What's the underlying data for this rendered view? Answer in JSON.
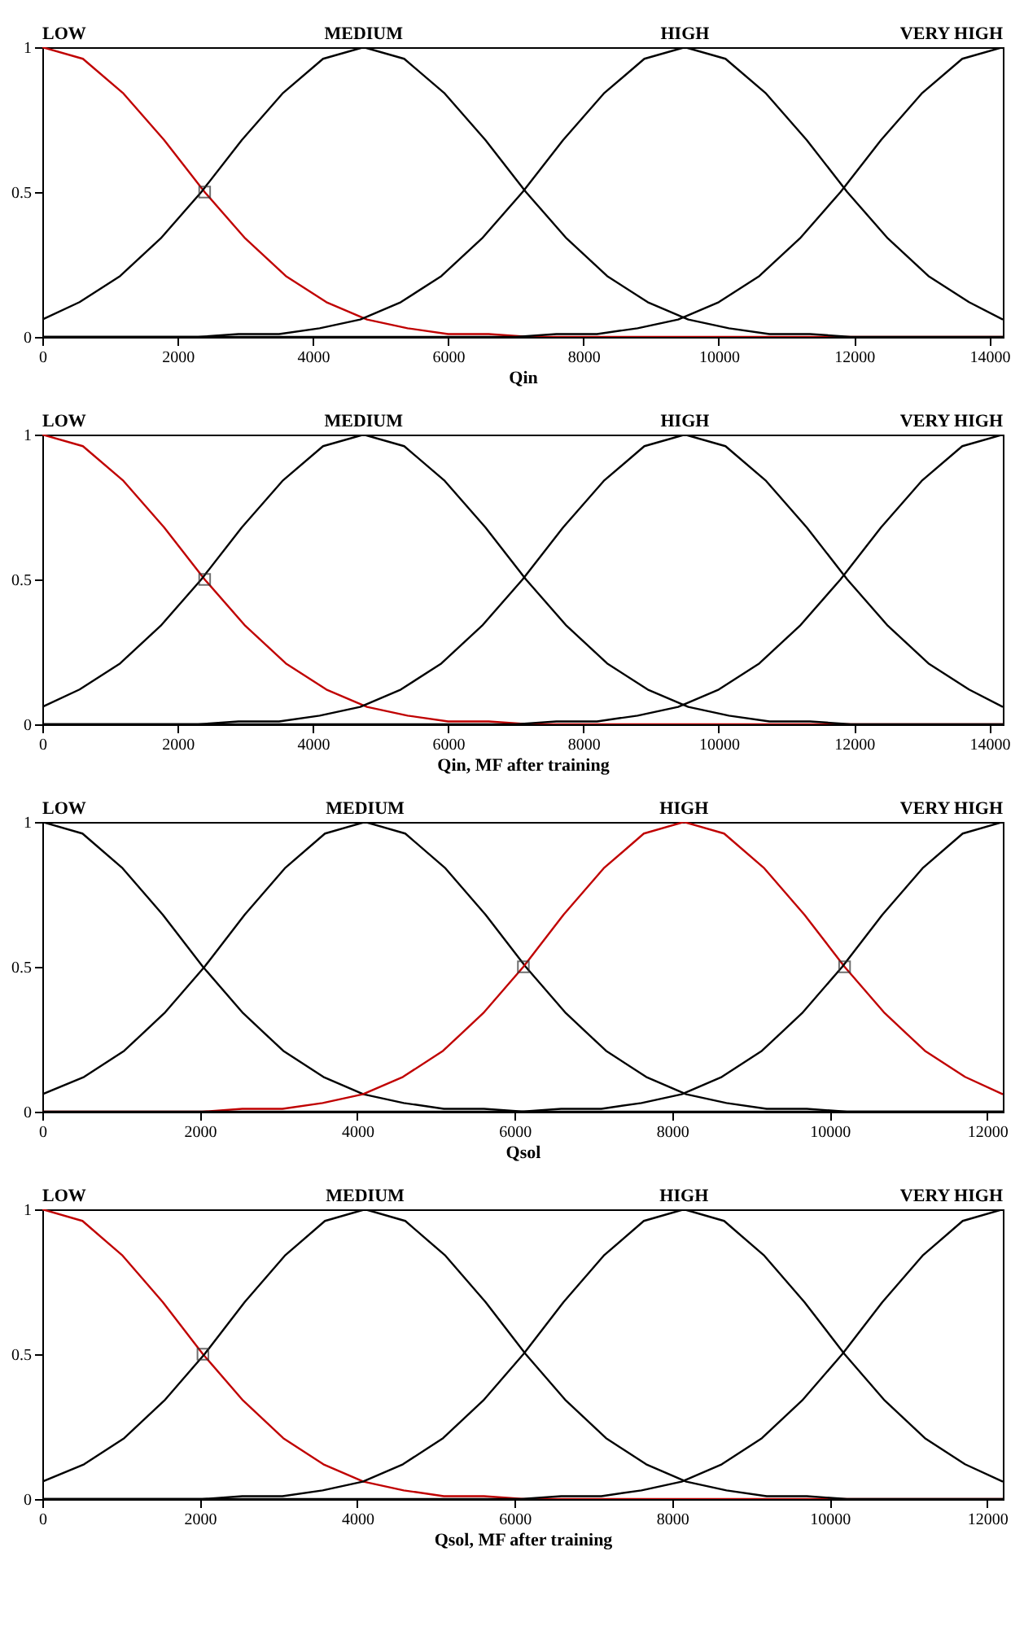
{
  "chart_data": [
    {
      "type": "line",
      "xlabel": "Qin",
      "xlim": [
        0,
        14200
      ],
      "xticks": [
        0,
        2000,
        4000,
        6000,
        8000,
        10000,
        12000,
        14000
      ],
      "ylim": [
        0,
        1
      ],
      "yticks": [
        0,
        0.5,
        1
      ],
      "line_style": "solid",
      "series": [
        {
          "name": "LOW",
          "color": "#c00000",
          "x": [
            0,
            600,
            1200,
            1800,
            2400,
            3000,
            3600,
            4200,
            4800,
            5400,
            6000,
            6600,
            7200,
            14200
          ],
          "values": [
            1,
            0.96,
            0.84,
            0.68,
            0.5,
            0.34,
            0.21,
            0.12,
            0.06,
            0.03,
            0.01,
            0.01,
            0,
            0
          ]
        },
        {
          "name": "MEDIUM",
          "color": "#000000",
          "x": [
            0,
            550,
            1150,
            1750,
            2350,
            2950,
            3550,
            4150,
            4750,
            5350,
            5950,
            6550,
            7150,
            7750,
            8350,
            8950,
            9550,
            10150,
            10750,
            11350,
            11950,
            14200
          ],
          "values": [
            0.06,
            0.12,
            0.21,
            0.34,
            0.5,
            0.68,
            0.84,
            0.96,
            1,
            0.96,
            0.84,
            0.68,
            0.5,
            0.34,
            0.21,
            0.12,
            0.06,
            0.03,
            0.01,
            0.01,
            0,
            0
          ]
        },
        {
          "name": "HIGH",
          "color": "#000000",
          "x": [
            0,
            2300,
            2900,
            3500,
            4100,
            4700,
            5300,
            5900,
            6500,
            7100,
            7700,
            8300,
            8900,
            9500,
            10100,
            10700,
            11300,
            11900,
            12500,
            13100,
            13700,
            14200
          ],
          "values": [
            0,
            0,
            0.01,
            0.01,
            0.03,
            0.06,
            0.12,
            0.21,
            0.34,
            0.5,
            0.68,
            0.84,
            0.96,
            1,
            0.96,
            0.84,
            0.68,
            0.5,
            0.34,
            0.21,
            0.12,
            0.06
          ]
        },
        {
          "name": "VERY HIGH",
          "color": "#000000",
          "x": [
            0,
            7000,
            7600,
            8200,
            8800,
            9400,
            10000,
            10600,
            11200,
            11800,
            12400,
            13000,
            13600,
            14200
          ],
          "values": [
            0,
            0,
            0.01,
            0.01,
            0.03,
            0.06,
            0.12,
            0.21,
            0.34,
            0.5,
            0.68,
            0.84,
            0.96,
            1
          ]
        },
        {
          "type": "scatter",
          "marker": "square",
          "color": "#333333",
          "x": [
            2400
          ],
          "values": [
            0.5
          ]
        }
      ]
    },
    {
      "type": "line",
      "xlabel": "Qin, MF after training",
      "xlim": [
        0,
        14200
      ],
      "xticks": [
        0,
        2000,
        4000,
        6000,
        8000,
        10000,
        12000,
        14000
      ],
      "ylim": [
        0,
        1
      ],
      "yticks": [
        0,
        0.5,
        1
      ],
      "line_style": "solid",
      "series": [
        {
          "name": "LOW",
          "color": "#c00000",
          "x": [
            0,
            600,
            1200,
            1800,
            2400,
            3000,
            3600,
            4200,
            4800,
            5400,
            6000,
            6600,
            7200,
            14200
          ],
          "values": [
            1,
            0.96,
            0.84,
            0.68,
            0.5,
            0.34,
            0.21,
            0.12,
            0.06,
            0.03,
            0.01,
            0.01,
            0,
            0
          ]
        },
        {
          "name": "MEDIUM",
          "color": "#000000",
          "x": [
            0,
            550,
            1150,
            1750,
            2350,
            2950,
            3550,
            4150,
            4750,
            5350,
            5950,
            6550,
            7150,
            7750,
            8350,
            8950,
            9550,
            10150,
            10750,
            11350,
            11950,
            14200
          ],
          "values": [
            0.06,
            0.12,
            0.21,
            0.34,
            0.5,
            0.68,
            0.84,
            0.96,
            1,
            0.96,
            0.84,
            0.68,
            0.5,
            0.34,
            0.21,
            0.12,
            0.06,
            0.03,
            0.01,
            0.01,
            0,
            0
          ]
        },
        {
          "name": "HIGH",
          "color": "#000000",
          "x": [
            0,
            2300,
            2900,
            3500,
            4100,
            4700,
            5300,
            5900,
            6500,
            7100,
            7700,
            8300,
            8900,
            9500,
            10100,
            10700,
            11300,
            11900,
            12500,
            13100,
            13700,
            14200
          ],
          "values": [
            0,
            0,
            0.01,
            0.01,
            0.03,
            0.06,
            0.12,
            0.21,
            0.34,
            0.5,
            0.68,
            0.84,
            0.96,
            1,
            0.96,
            0.84,
            0.68,
            0.5,
            0.34,
            0.21,
            0.12,
            0.06
          ]
        },
        {
          "name": "VERY HIGH",
          "color": "#000000",
          "x": [
            0,
            7000,
            7600,
            8200,
            8800,
            9400,
            10000,
            10600,
            11200,
            11800,
            12400,
            13000,
            13600,
            14200
          ],
          "values": [
            0,
            0,
            0.01,
            0.01,
            0.03,
            0.06,
            0.12,
            0.21,
            0.34,
            0.5,
            0.68,
            0.84,
            0.96,
            1
          ]
        },
        {
          "type": "scatter",
          "marker": "square",
          "color": "#333333",
          "x": [
            2400
          ],
          "values": [
            0.5
          ]
        }
      ]
    },
    {
      "type": "line",
      "xlabel": "Qsol",
      "xlim": [
        0,
        12200
      ],
      "xticks": [
        0,
        2000,
        4000,
        6000,
        8000,
        10000,
        12000
      ],
      "ylim": [
        0,
        1
      ],
      "yticks": [
        0,
        0.5,
        1
      ],
      "line_style": "solid",
      "series": [
        {
          "name": "LOW",
          "color": "#000000",
          "x": [
            0,
            510,
            1020,
            1530,
            2040,
            2550,
            3060,
            3570,
            4080,
            4590,
            5100,
            5610,
            6120,
            12200
          ],
          "values": [
            1,
            0.96,
            0.84,
            0.68,
            0.5,
            0.34,
            0.21,
            0.12,
            0.06,
            0.03,
            0.01,
            0.01,
            0,
            0
          ]
        },
        {
          "name": "MEDIUM",
          "color": "#000000",
          "x": [
            0,
            530,
            1040,
            1550,
            2060,
            2570,
            3080,
            3590,
            4100,
            4610,
            5120,
            5630,
            6140,
            6650,
            7160,
            7670,
            8180,
            8690,
            9200,
            9710,
            10220,
            12200
          ],
          "values": [
            0.06,
            0.12,
            0.21,
            0.34,
            0.5,
            0.68,
            0.84,
            0.96,
            1,
            0.96,
            0.84,
            0.68,
            0.5,
            0.34,
            0.21,
            0.12,
            0.06,
            0.03,
            0.01,
            0.01,
            0,
            0
          ]
        },
        {
          "name": "HIGH",
          "color": "#c00000",
          "x": [
            0,
            2030,
            2540,
            3050,
            3560,
            4070,
            4580,
            5090,
            5600,
            6110,
            6620,
            7130,
            7640,
            8150,
            8660,
            9170,
            9680,
            10190,
            10700,
            11210,
            11720,
            12200
          ],
          "values": [
            0,
            0,
            0.01,
            0.01,
            0.03,
            0.06,
            0.12,
            0.21,
            0.34,
            0.5,
            0.68,
            0.84,
            0.96,
            1,
            0.96,
            0.84,
            0.68,
            0.5,
            0.34,
            0.21,
            0.12,
            0.06
          ]
        },
        {
          "name": "VERY HIGH",
          "color": "#000000",
          "x": [
            0,
            6080,
            6590,
            7100,
            7610,
            8120,
            8630,
            9140,
            9650,
            10160,
            10670,
            11180,
            11690,
            12200
          ],
          "values": [
            0,
            0,
            0.01,
            0.01,
            0.03,
            0.06,
            0.12,
            0.21,
            0.34,
            0.5,
            0.68,
            0.84,
            0.96,
            1
          ]
        },
        {
          "type": "scatter",
          "marker": "square",
          "color": "#333333",
          "x": [
            6110,
            10190
          ],
          "values": [
            0.5,
            0.5
          ]
        }
      ]
    },
    {
      "type": "line",
      "xlabel": "Qsol, MF after training",
      "xlim": [
        0,
        12200
      ],
      "xticks": [
        0,
        2000,
        4000,
        6000,
        8000,
        10000,
        12000
      ],
      "ylim": [
        0,
        1
      ],
      "yticks": [
        0,
        0.5,
        1
      ],
      "line_style": "solid",
      "series": [
        {
          "name": "LOW",
          "color": "#c00000",
          "x": [
            0,
            510,
            1020,
            1530,
            2040,
            2550,
            3060,
            3570,
            4080,
            4590,
            5100,
            5610,
            6120,
            12200
          ],
          "values": [
            1,
            0.96,
            0.84,
            0.68,
            0.5,
            0.34,
            0.21,
            0.12,
            0.06,
            0.03,
            0.01,
            0.01,
            0,
            0
          ]
        },
        {
          "name": "MEDIUM",
          "color": "#000000",
          "x": [
            0,
            530,
            1040,
            1550,
            2060,
            2570,
            3080,
            3590,
            4100,
            4610,
            5120,
            5630,
            6140,
            6650,
            7160,
            7670,
            8180,
            8690,
            9200,
            9710,
            10220,
            12200
          ],
          "values": [
            0.06,
            0.12,
            0.21,
            0.34,
            0.5,
            0.68,
            0.84,
            0.96,
            1,
            0.96,
            0.84,
            0.68,
            0.5,
            0.34,
            0.21,
            0.12,
            0.06,
            0.03,
            0.01,
            0.01,
            0,
            0
          ]
        },
        {
          "name": "HIGH",
          "color": "#000000",
          "x": [
            0,
            2030,
            2540,
            3050,
            3560,
            4070,
            4580,
            5090,
            5600,
            6110,
            6620,
            7130,
            7640,
            8150,
            8660,
            9170,
            9680,
            10190,
            10700,
            11210,
            11720,
            12200
          ],
          "values": [
            0,
            0,
            0.01,
            0.01,
            0.03,
            0.06,
            0.12,
            0.21,
            0.34,
            0.5,
            0.68,
            0.84,
            0.96,
            1,
            0.96,
            0.84,
            0.68,
            0.5,
            0.34,
            0.21,
            0.12,
            0.06
          ]
        },
        {
          "name": "VERY HIGH",
          "color": "#000000",
          "x": [
            0,
            6080,
            6590,
            7100,
            7610,
            8120,
            8630,
            9140,
            9650,
            10160,
            10670,
            11180,
            11690,
            12200
          ],
          "values": [
            0,
            0,
            0.01,
            0.01,
            0.03,
            0.06,
            0.12,
            0.21,
            0.34,
            0.5,
            0.68,
            0.84,
            0.96,
            1
          ]
        },
        {
          "type": "scatter",
          "marker": "square",
          "color": "#333333",
          "x": [
            2040
          ],
          "values": [
            0.5
          ]
        }
      ]
    }
  ]
}
